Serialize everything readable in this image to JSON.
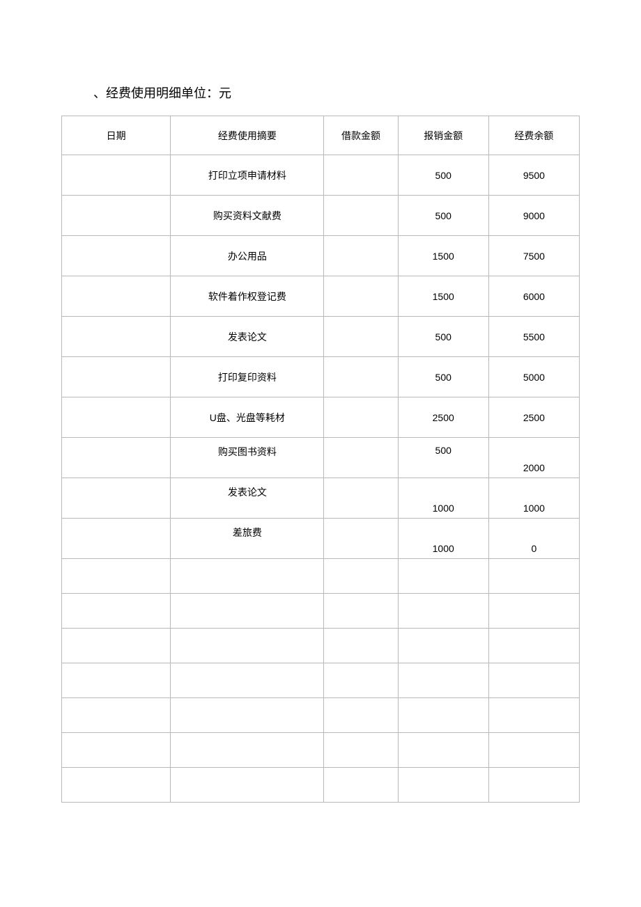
{
  "title": "、经费使用明细单位：元",
  "table": {
    "columns": [
      {
        "key": "date",
        "label": "日期"
      },
      {
        "key": "summary",
        "label": "经费使用摘要"
      },
      {
        "key": "loan",
        "label": "借款金额"
      },
      {
        "key": "reimburse",
        "label": "报销金额"
      },
      {
        "key": "balance",
        "label": "经费余额"
      }
    ],
    "rows": [
      {
        "date": "",
        "summary": "打印立项申请材料",
        "loan": "",
        "reimburse": "500",
        "balance": "9500"
      },
      {
        "date": "",
        "summary": "购买资料文献费",
        "loan": "",
        "reimburse": "500",
        "balance": "9000"
      },
      {
        "date": "",
        "summary": "办公用品",
        "loan": "",
        "reimburse": "1500",
        "balance": "7500"
      },
      {
        "date": "",
        "summary": "软件着作权登记费",
        "loan": "",
        "reimburse": "1500",
        "balance": "6000"
      },
      {
        "date": "",
        "summary": "发表论文",
        "loan": "",
        "reimburse": "500",
        "balance": "5500"
      },
      {
        "date": "",
        "summary": "打印复印资料",
        "loan": "",
        "reimburse": "500",
        "balance": "5000"
      },
      {
        "date": "",
        "summary": "U盘、光盘等耗材",
        "loan": "",
        "reimburse": "2500",
        "balance": "2500"
      },
      {
        "date": "",
        "summary": "购买图书资料",
        "loan": "",
        "reimburse": "500",
        "balance": "2000",
        "balanceAlign": "bottom",
        "summaryAlign": "top",
        "reimburseAlign": "top"
      },
      {
        "date": "",
        "summary": "发表论文",
        "loan": "",
        "reimburse": "1000",
        "balance": "1000",
        "summaryAlign": "top",
        "reimburseAlign": "bottom",
        "balanceAlign": "bottom"
      },
      {
        "date": "",
        "summary": "差旅费",
        "loan": "",
        "reimburse": "1000",
        "balance": "0",
        "summaryAlign": "top",
        "reimburseAlign": "bottom",
        "balanceAlign": "bottom"
      },
      {
        "date": "",
        "summary": "",
        "loan": "",
        "reimburse": "",
        "balance": "",
        "empty": true
      },
      {
        "date": "",
        "summary": "",
        "loan": "",
        "reimburse": "",
        "balance": "",
        "empty": true
      },
      {
        "date": "",
        "summary": "",
        "loan": "",
        "reimburse": "",
        "balance": "",
        "empty": true
      },
      {
        "date": "",
        "summary": "",
        "loan": "",
        "reimburse": "",
        "balance": "",
        "empty": true
      },
      {
        "date": "",
        "summary": "",
        "loan": "",
        "reimburse": "",
        "balance": "",
        "empty": true
      },
      {
        "date": "",
        "summary": "",
        "loan": "",
        "reimburse": "",
        "balance": "",
        "empty": true
      },
      {
        "date": "",
        "summary": "",
        "loan": "",
        "reimburse": "",
        "balance": "",
        "empty": true
      }
    ]
  },
  "style": {
    "background_color": "#ffffff",
    "border_color": "#b8b8b8",
    "text_color": "#000000",
    "title_fontsize": 18,
    "cell_fontsize": 14
  }
}
